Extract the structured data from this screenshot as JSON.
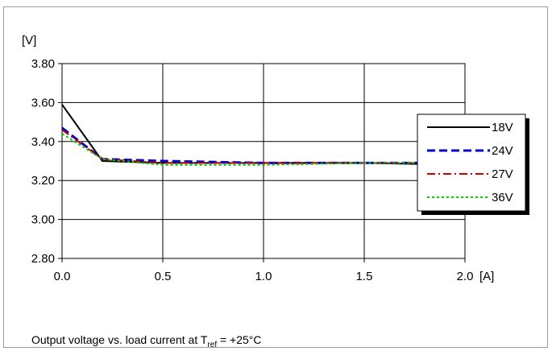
{
  "chart_data": {
    "type": "line",
    "ylabel": "[V]",
    "xlabel": "[A]",
    "xlim": [
      0,
      2.0
    ],
    "ylim": [
      2.8,
      3.8
    ],
    "x_ticks": [
      "0.0",
      "0.5",
      "1.0",
      "1.5",
      "2.0"
    ],
    "y_ticks": [
      "3.80",
      "3.60",
      "3.40",
      "3.20",
      "3.00",
      "2.80"
    ],
    "grid": true,
    "legend_position": "right",
    "series": [
      {
        "name": "18V",
        "color": "#000000",
        "dash": "solid",
        "x": [
          0.0,
          0.2,
          0.5,
          1.0,
          1.5,
          2.0
        ],
        "y": [
          3.59,
          3.3,
          3.29,
          3.29,
          3.29,
          3.28
        ]
      },
      {
        "name": "24V",
        "color": "#0000cc",
        "dash": "dashed",
        "x": [
          0.0,
          0.2,
          0.5,
          1.0,
          1.5,
          2.0
        ],
        "y": [
          3.47,
          3.31,
          3.3,
          3.29,
          3.29,
          3.29
        ]
      },
      {
        "name": "27V",
        "color": "#cc0000",
        "dash": "dashdot",
        "x": [
          0.0,
          0.2,
          0.5,
          1.0,
          1.5,
          2.0
        ],
        "y": [
          3.46,
          3.31,
          3.29,
          3.29,
          3.29,
          3.29
        ]
      },
      {
        "name": "36V",
        "color": "#00cc00",
        "dash": "dotted",
        "x": [
          0.0,
          0.2,
          0.5,
          1.0,
          1.5,
          2.0
        ],
        "y": [
          3.44,
          3.31,
          3.28,
          3.28,
          3.29,
          3.29
        ]
      }
    ]
  },
  "caption": {
    "prefix": "Output voltage vs. load current at T",
    "subscript": "ref",
    "suffix": " = +25°C"
  }
}
